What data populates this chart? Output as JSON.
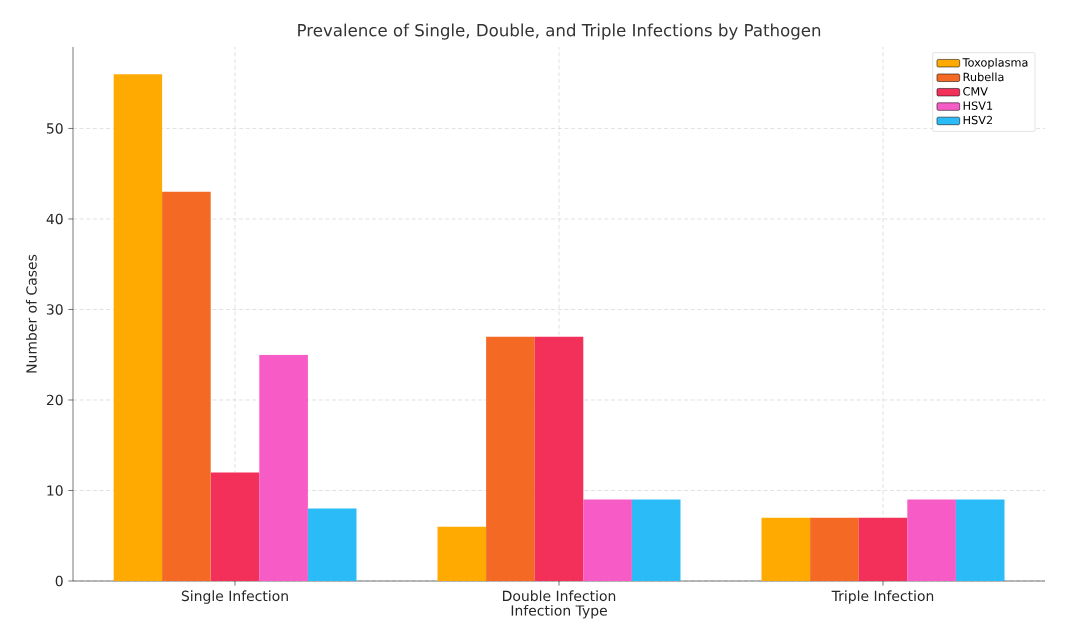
{
  "chart_data": {
    "type": "bar",
    "title": "Prevalence of Single, Double, and Triple Infections by Pathogen",
    "xlabel": "Infection Type",
    "ylabel": "Number of Cases",
    "categories": [
      "Single Infection",
      "Double Infection",
      "Triple Infection"
    ],
    "series": [
      {
        "name": "Toxoplasma",
        "color": "#ffaa00",
        "values": [
          56,
          6,
          7
        ]
      },
      {
        "name": "Rubella",
        "color": "#f46a25",
        "values": [
          43,
          27,
          7
        ]
      },
      {
        "name": "CMV",
        "color": "#f2305a",
        "values": [
          12,
          27,
          7
        ]
      },
      {
        "name": "HSV1",
        "color": "#f75cc6",
        "values": [
          25,
          9,
          9
        ]
      },
      {
        "name": "HSV2",
        "color": "#2bbcf7",
        "values": [
          8,
          9,
          9
        ]
      }
    ],
    "ylim": [
      0,
      59
    ],
    "yticks": [
      0,
      10,
      20,
      30,
      40,
      50
    ],
    "grid": true,
    "legend": "top right"
  }
}
